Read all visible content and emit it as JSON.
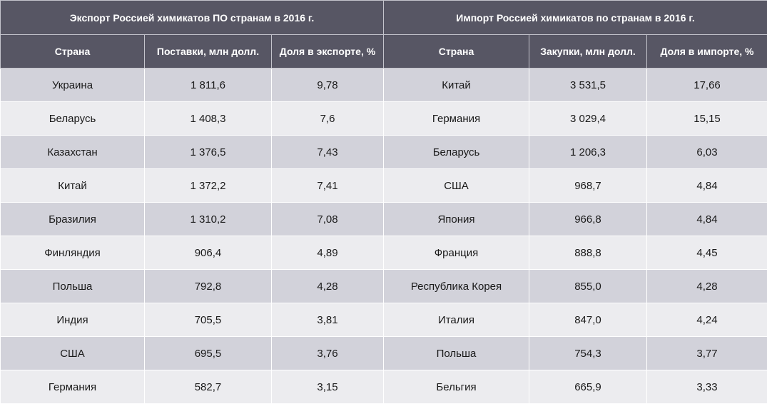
{
  "export": {
    "title": "Экспорт Россией химикатов ПО странам в 2016 г.",
    "headers": [
      "Страна",
      "Поставки, млн долл.",
      "Доля в экспорте, %"
    ],
    "rows": [
      [
        "Украина",
        "1 811,6",
        "9,78"
      ],
      [
        "Беларусь",
        "1 408,3",
        "7,6"
      ],
      [
        "Казахстан",
        "1 376,5",
        "7,43"
      ],
      [
        "Китай",
        "1 372,2",
        "7,41"
      ],
      [
        "Бразилия",
        "1 310,2",
        "7,08"
      ],
      [
        "Финляндия",
        "906,4",
        "4,89"
      ],
      [
        "Польша",
        "792,8",
        "4,28"
      ],
      [
        "Индия",
        "705,5",
        "3,81"
      ],
      [
        "США",
        "695,5",
        "3,76"
      ],
      [
        "Германия",
        "582,7",
        "3,15"
      ]
    ]
  },
  "import": {
    "title": "Импорт Россией химикатов по странам в 2016 г.",
    "headers": [
      "Страна",
      "Закупки, млн долл.",
      "Доля в импорте, %"
    ],
    "rows": [
      [
        "Китай",
        "3 531,5",
        "17,66"
      ],
      [
        "Германия",
        "3 029,4",
        "15,15"
      ],
      [
        "Беларусь",
        "1 206,3",
        "6,03"
      ],
      [
        "США",
        "968,7",
        "4,84"
      ],
      [
        "Япония",
        "966,8",
        "4,84"
      ],
      [
        "Франция",
        "888,8",
        "4,45"
      ],
      [
        "Республика Корея",
        "855,0",
        "4,28"
      ],
      [
        "Италия",
        "847,0",
        "4,24"
      ],
      [
        "Польша",
        "754,3",
        "3,77"
      ],
      [
        "Бельгия",
        "665,9",
        "3,33"
      ]
    ]
  },
  "colors": {
    "header_bg": "#575664",
    "row_dark": "#d2d2da",
    "row_light": "#ececef"
  }
}
